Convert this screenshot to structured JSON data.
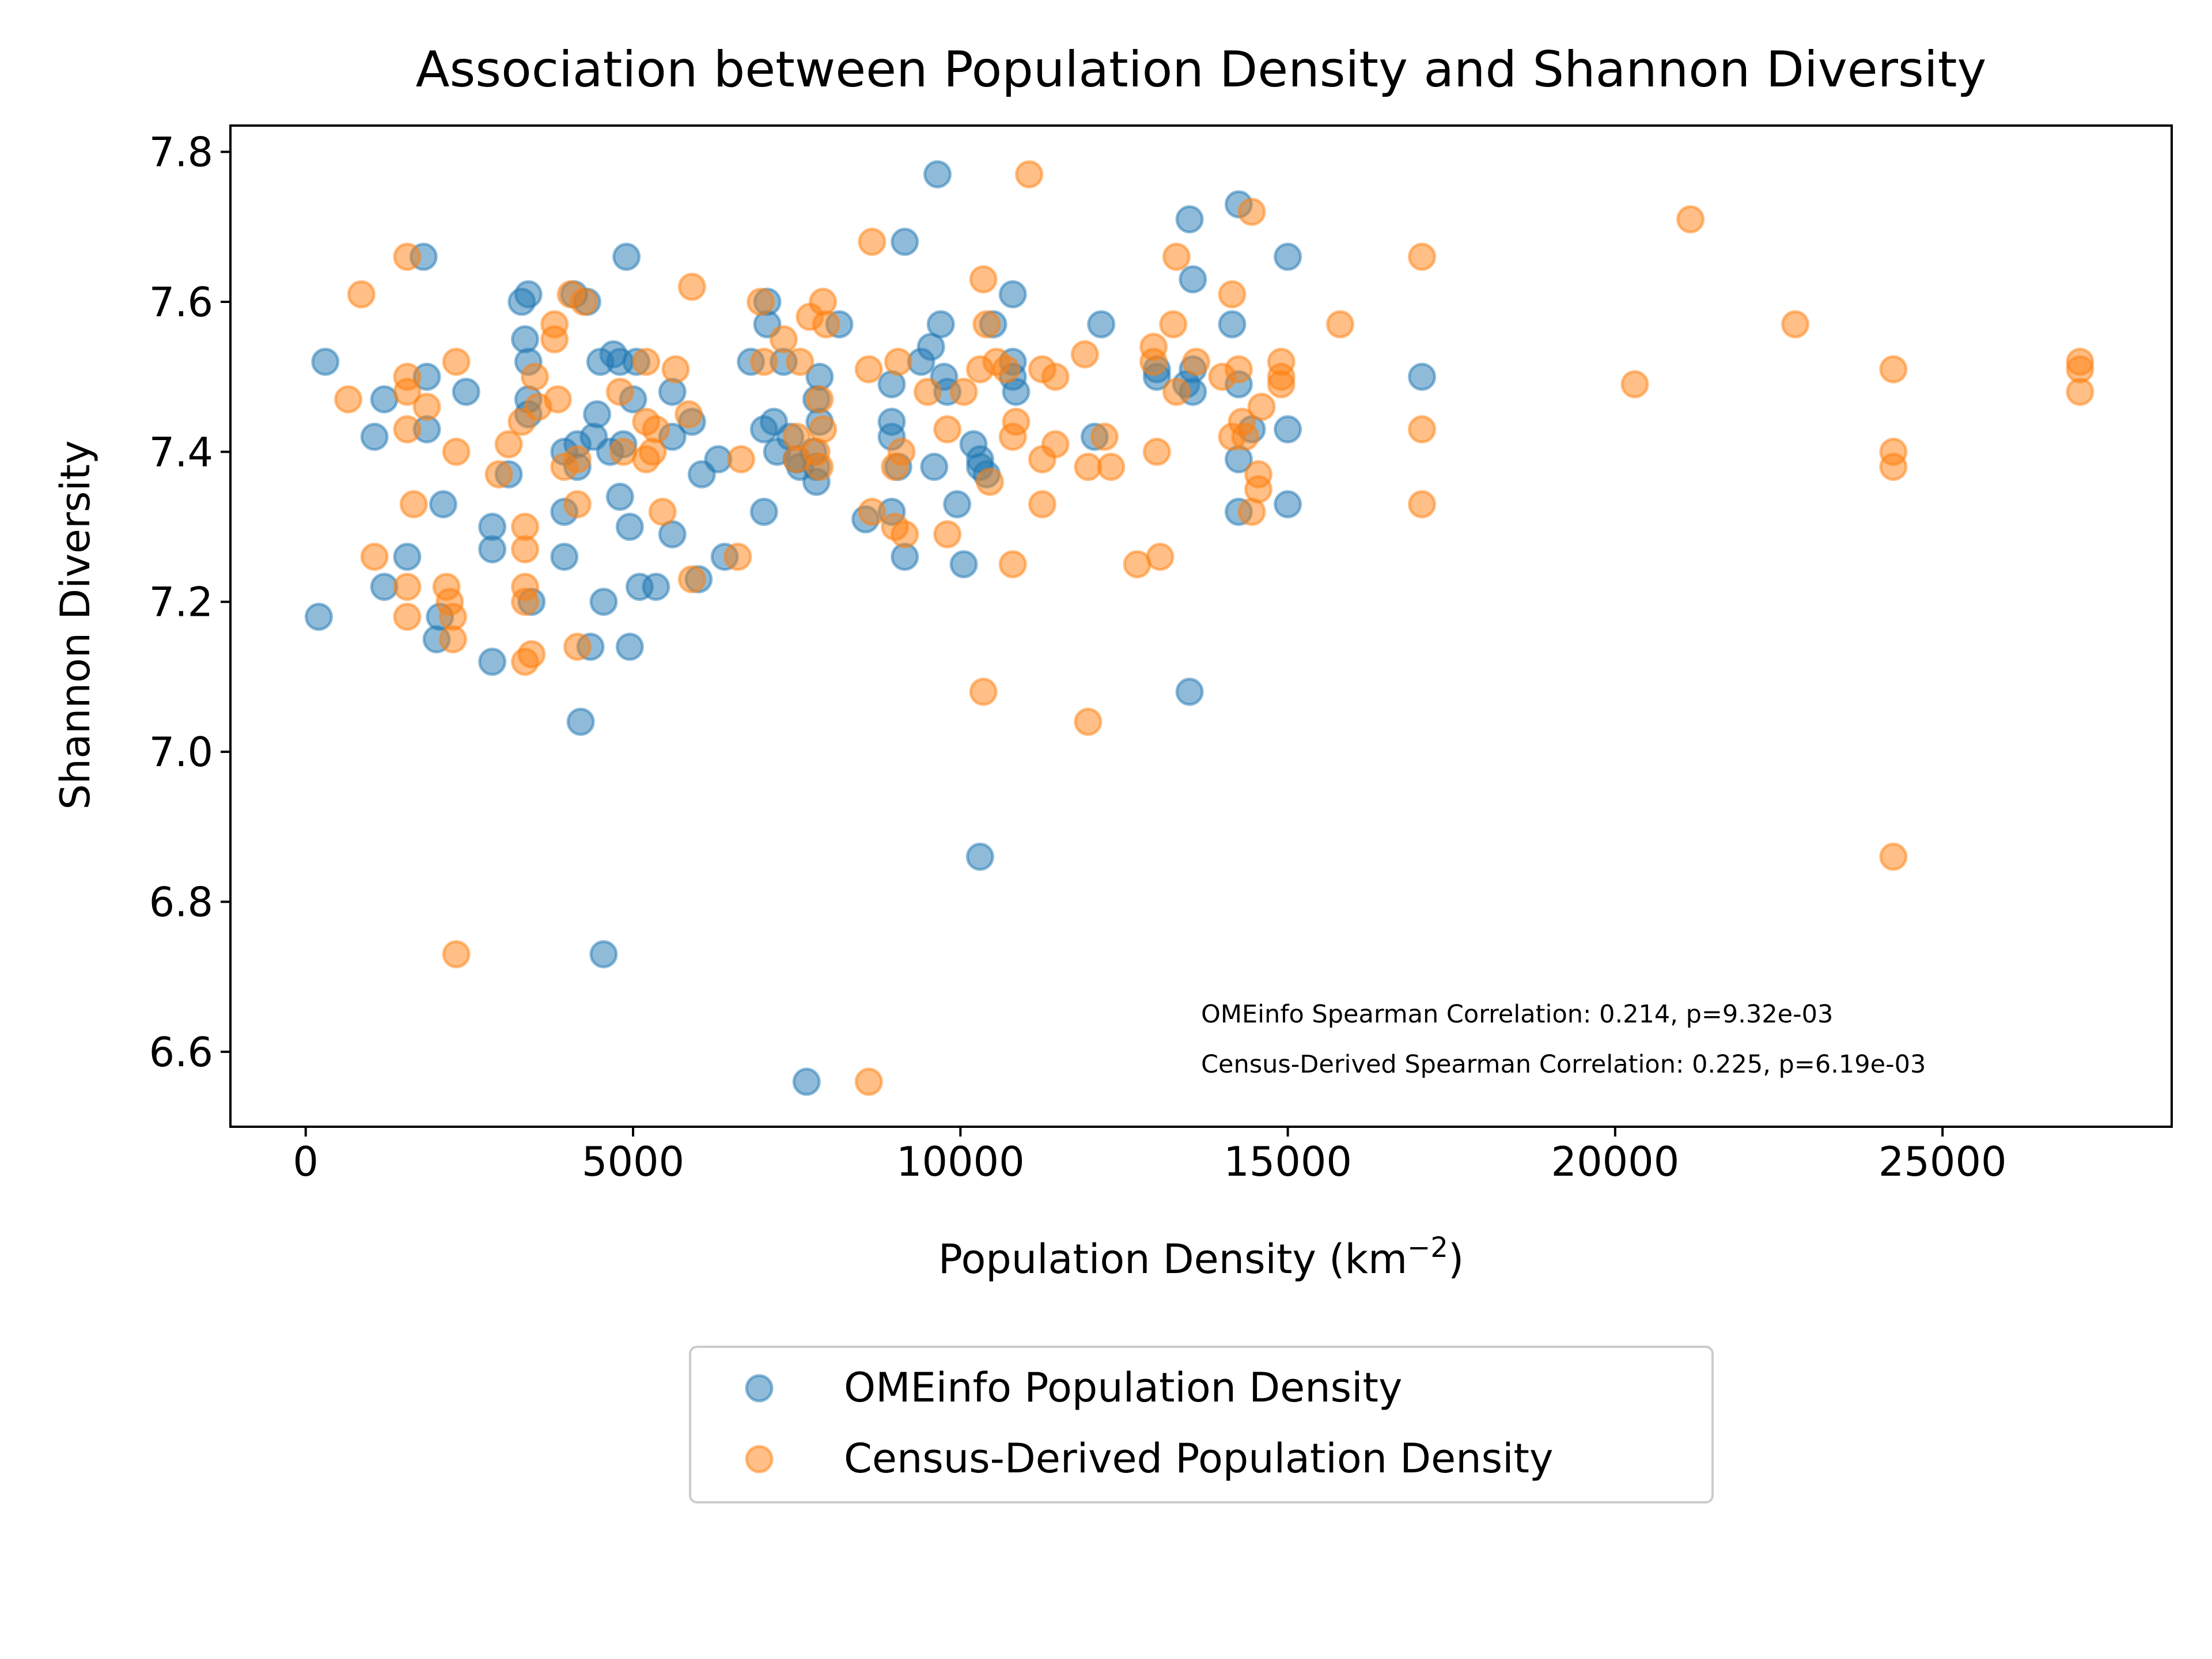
{
  "chart_data": {
    "type": "scatter",
    "title": "Association between Population Density and Shannon Diversity",
    "xlabel": "Population Density (km",
    "xlabel_sup": "−2",
    "xlabel_end": ")",
    "ylabel": "Shannon Diversity",
    "xlim": [
      -1150,
      28500
    ],
    "ylim": [
      6.5,
      7.835
    ],
    "xticks": [
      0,
      5000,
      10000,
      15000,
      20000,
      25000
    ],
    "yticks": [
      6.6,
      6.8,
      7.0,
      7.2,
      7.4,
      7.6,
      7.8
    ],
    "grid": false,
    "legend_position": "below-center",
    "annotations": [
      "OMEinfo Spearman Correlation: 0.214, p=9.32e-03",
      "Census-Derived Spearman Correlation: 0.225, p=6.19e-03"
    ],
    "series": [
      {
        "name": "OMEinfo Population Density",
        "color": "#1f77b4",
        "points": [
          [
            200,
            7.18
          ],
          [
            300,
            7.52
          ],
          [
            1050,
            7.42
          ],
          [
            1200,
            7.22
          ],
          [
            1200,
            7.47
          ],
          [
            1550,
            7.26
          ],
          [
            1800,
            7.66
          ],
          [
            1850,
            7.43
          ],
          [
            1850,
            7.5
          ],
          [
            2000,
            7.15
          ],
          [
            2050,
            7.18
          ],
          [
            2100,
            7.33
          ],
          [
            2450,
            7.48
          ],
          [
            2850,
            7.3
          ],
          [
            2850,
            7.27
          ],
          [
            2850,
            7.12
          ],
          [
            3100,
            7.37
          ],
          [
            3300,
            7.6
          ],
          [
            3350,
            7.55
          ],
          [
            3400,
            7.52
          ],
          [
            3400,
            7.61
          ],
          [
            3400,
            7.47
          ],
          [
            3400,
            7.45
          ],
          [
            3450,
            7.2
          ],
          [
            3950,
            7.4
          ],
          [
            3950,
            7.32
          ],
          [
            3950,
            7.26
          ],
          [
            4100,
            7.61
          ],
          [
            4150,
            7.41
          ],
          [
            4150,
            7.38
          ],
          [
            4200,
            7.04
          ],
          [
            4300,
            7.6
          ],
          [
            4350,
            7.14
          ],
          [
            4400,
            7.42
          ],
          [
            4450,
            7.45
          ],
          [
            4500,
            7.52
          ],
          [
            4550,
            6.73
          ],
          [
            4550,
            7.2
          ],
          [
            4650,
            7.4
          ],
          [
            4700,
            7.53
          ],
          [
            4800,
            7.52
          ],
          [
            4800,
            7.34
          ],
          [
            4850,
            7.41
          ],
          [
            4900,
            7.66
          ],
          [
            4950,
            7.3
          ],
          [
            4950,
            7.14
          ],
          [
            5000,
            7.47
          ],
          [
            5050,
            7.52
          ],
          [
            5100,
            7.22
          ],
          [
            5350,
            7.22
          ],
          [
            5600,
            7.48
          ],
          [
            5600,
            7.29
          ],
          [
            5600,
            7.42
          ],
          [
            5900,
            7.44
          ],
          [
            6000,
            7.23
          ],
          [
            6050,
            7.37
          ],
          [
            6300,
            7.39
          ],
          [
            6400,
            7.26
          ],
          [
            6800,
            7.52
          ],
          [
            7000,
            7.43
          ],
          [
            7000,
            7.32
          ],
          [
            7050,
            7.6
          ],
          [
            7050,
            7.57
          ],
          [
            7150,
            7.44
          ],
          [
            7200,
            7.4
          ],
          [
            7300,
            7.52
          ],
          [
            7400,
            7.42
          ],
          [
            7500,
            7.39
          ],
          [
            7550,
            7.38
          ],
          [
            7650,
            6.56
          ],
          [
            7750,
            7.4
          ],
          [
            7800,
            7.38
          ],
          [
            7800,
            7.36
          ],
          [
            7800,
            7.47
          ],
          [
            7850,
            7.5
          ],
          [
            7850,
            7.44
          ],
          [
            8150,
            7.57
          ],
          [
            8550,
            7.31
          ],
          [
            8950,
            7.49
          ],
          [
            8950,
            7.44
          ],
          [
            8950,
            7.42
          ],
          [
            8950,
            7.32
          ],
          [
            9050,
            7.38
          ],
          [
            9150,
            7.68
          ],
          [
            9150,
            7.26
          ],
          [
            9400,
            7.52
          ],
          [
            9550,
            7.54
          ],
          [
            9600,
            7.38
          ],
          [
            9650,
            7.77
          ],
          [
            9700,
            7.57
          ],
          [
            9750,
            7.5
          ],
          [
            9800,
            7.48
          ],
          [
            9950,
            7.33
          ],
          [
            10050,
            7.25
          ],
          [
            10200,
            7.41
          ],
          [
            10300,
            7.39
          ],
          [
            10300,
            7.38
          ],
          [
            10300,
            6.86
          ],
          [
            10400,
            7.37
          ],
          [
            10500,
            7.57
          ],
          [
            10800,
            7.61
          ],
          [
            10800,
            7.52
          ],
          [
            10800,
            7.5
          ],
          [
            10850,
            7.48
          ],
          [
            12150,
            7.57
          ],
          [
            12050,
            7.42
          ],
          [
            13000,
            7.5
          ],
          [
            13000,
            7.51
          ],
          [
            13450,
            7.49
          ],
          [
            13500,
            7.08
          ],
          [
            13500,
            7.71
          ],
          [
            13550,
            7.63
          ],
          [
            13550,
            7.51
          ],
          [
            13550,
            7.48
          ],
          [
            14150,
            7.57
          ],
          [
            14250,
            7.73
          ],
          [
            14250,
            7.49
          ],
          [
            14250,
            7.39
          ],
          [
            14250,
            7.32
          ],
          [
            14450,
            7.43
          ],
          [
            15000,
            7.66
          ],
          [
            15000,
            7.43
          ],
          [
            15000,
            7.33
          ],
          [
            17050,
            7.5
          ]
        ]
      },
      {
        "name": "Census-Derived Population Density",
        "color": "#ff7f0e",
        "points": [
          [
            650,
            7.47
          ],
          [
            850,
            7.61
          ],
          [
            1050,
            7.26
          ],
          [
            1550,
            7.66
          ],
          [
            1550,
            7.5
          ],
          [
            1550,
            7.48
          ],
          [
            1550,
            7.43
          ],
          [
            1550,
            7.22
          ],
          [
            1550,
            7.18
          ],
          [
            1650,
            7.33
          ],
          [
            1850,
            7.46
          ],
          [
            2150,
            7.22
          ],
          [
            2200,
            7.2
          ],
          [
            2250,
            7.18
          ],
          [
            2250,
            7.15
          ],
          [
            2300,
            7.52
          ],
          [
            2300,
            6.73
          ],
          [
            2300,
            7.4
          ],
          [
            2950,
            7.37
          ],
          [
            3100,
            7.41
          ],
          [
            3300,
            7.44
          ],
          [
            3350,
            7.3
          ],
          [
            3350,
            7.27
          ],
          [
            3350,
            7.22
          ],
          [
            3350,
            7.2
          ],
          [
            3350,
            7.12
          ],
          [
            3450,
            7.13
          ],
          [
            3500,
            7.5
          ],
          [
            3550,
            7.46
          ],
          [
            3800,
            7.57
          ],
          [
            3800,
            7.55
          ],
          [
            3850,
            7.47
          ],
          [
            3950,
            7.38
          ],
          [
            4050,
            7.61
          ],
          [
            4150,
            7.33
          ],
          [
            4150,
            7.14
          ],
          [
            4150,
            7.39
          ],
          [
            4250,
            7.6
          ],
          [
            4800,
            7.48
          ],
          [
            4850,
            7.4
          ],
          [
            5200,
            7.52
          ],
          [
            5200,
            7.44
          ],
          [
            5200,
            7.39
          ],
          [
            5300,
            7.4
          ],
          [
            5350,
            7.43
          ],
          [
            5450,
            7.32
          ],
          [
            5650,
            7.51
          ],
          [
            5850,
            7.45
          ],
          [
            5900,
            7.62
          ],
          [
            5900,
            7.23
          ],
          [
            6600,
            7.26
          ],
          [
            6650,
            7.39
          ],
          [
            6950,
            7.6
          ],
          [
            7000,
            7.52
          ],
          [
            7300,
            7.55
          ],
          [
            7500,
            7.42
          ],
          [
            7500,
            7.39
          ],
          [
            7550,
            7.52
          ],
          [
            7700,
            7.58
          ],
          [
            7800,
            7.4
          ],
          [
            7850,
            7.47
          ],
          [
            7850,
            7.38
          ],
          [
            7900,
            7.43
          ],
          [
            7900,
            7.6
          ],
          [
            7950,
            7.57
          ],
          [
            8600,
            7.51
          ],
          [
            8600,
            6.56
          ],
          [
            8650,
            7.32
          ],
          [
            8650,
            7.68
          ],
          [
            9000,
            7.3
          ],
          [
            9000,
            7.38
          ],
          [
            9050,
            7.52
          ],
          [
            9100,
            7.4
          ],
          [
            9150,
            7.29
          ],
          [
            9500,
            7.48
          ],
          [
            9800,
            7.43
          ],
          [
            9800,
            7.29
          ],
          [
            10050,
            7.48
          ],
          [
            10300,
            7.51
          ],
          [
            10350,
            7.63
          ],
          [
            10350,
            7.08
          ],
          [
            10400,
            7.57
          ],
          [
            10450,
            7.36
          ],
          [
            10550,
            7.52
          ],
          [
            10700,
            7.51
          ],
          [
            10800,
            7.42
          ],
          [
            10800,
            7.25
          ],
          [
            10850,
            7.44
          ],
          [
            11050,
            7.77
          ],
          [
            11250,
            7.51
          ],
          [
            11250,
            7.39
          ],
          [
            11250,
            7.33
          ],
          [
            11450,
            7.41
          ],
          [
            11450,
            7.5
          ],
          [
            11900,
            7.53
          ],
          [
            11950,
            7.04
          ],
          [
            11950,
            7.38
          ],
          [
            12200,
            7.42
          ],
          [
            12300,
            7.38
          ],
          [
            12700,
            7.25
          ],
          [
            12950,
            7.52
          ],
          [
            12950,
            7.54
          ],
          [
            13000,
            7.4
          ],
          [
            13050,
            7.26
          ],
          [
            13250,
            7.57
          ],
          [
            13300,
            7.66
          ],
          [
            13300,
            7.48
          ],
          [
            13600,
            7.52
          ],
          [
            14000,
            7.5
          ],
          [
            14150,
            7.61
          ],
          [
            14150,
            7.42
          ],
          [
            14250,
            7.51
          ],
          [
            14300,
            7.44
          ],
          [
            14350,
            7.42
          ],
          [
            14450,
            7.72
          ],
          [
            14450,
            7.32
          ],
          [
            14550,
            7.37
          ],
          [
            14550,
            7.35
          ],
          [
            14600,
            7.46
          ],
          [
            14900,
            7.52
          ],
          [
            14900,
            7.5
          ],
          [
            14900,
            7.49
          ],
          [
            15800,
            7.57
          ],
          [
            17050,
            7.66
          ],
          [
            17050,
            7.43
          ],
          [
            17050,
            7.33
          ],
          [
            20300,
            7.49
          ],
          [
            21150,
            7.71
          ],
          [
            22750,
            7.57
          ],
          [
            24250,
            7.51
          ],
          [
            24250,
            7.4
          ],
          [
            24250,
            7.38
          ],
          [
            24250,
            6.86
          ],
          [
            27100,
            7.52
          ],
          [
            27100,
            7.51
          ],
          [
            27100,
            7.48
          ]
        ]
      }
    ]
  }
}
